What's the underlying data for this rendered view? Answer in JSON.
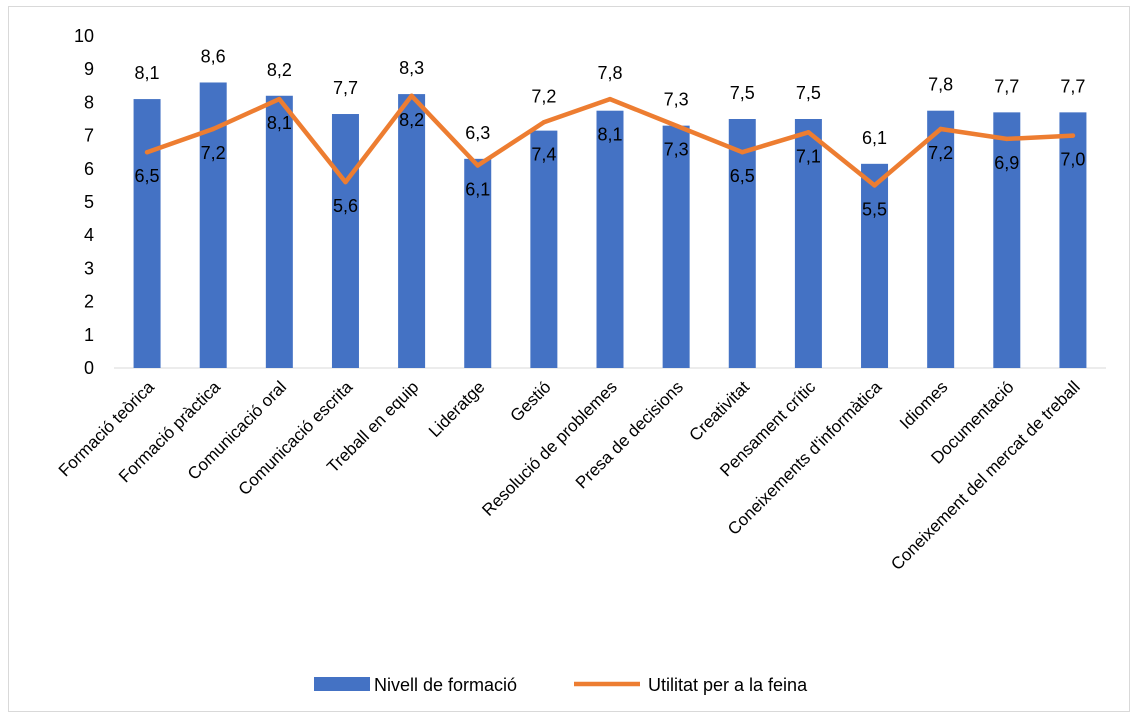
{
  "chart_data": {
    "type": "bar",
    "title": "",
    "xlabel": "",
    "ylabel": "",
    "ylim": [
      0,
      10
    ],
    "yticks": [
      "0",
      "1",
      "2",
      "3",
      "4",
      "5",
      "6",
      "7",
      "8",
      "9",
      "10"
    ],
    "grid": false,
    "legend_position": "bottom",
    "categories": [
      "Formació teòrica",
      "Formació pràctica",
      "Comunicació oral",
      "Comunicació escrita",
      "Treball en equip",
      "Lideratge",
      "Gestió",
      "Resolució de problemes",
      "Presa de decisions",
      "Creativitat",
      "Pensament crític",
      "Coneixements d'informàtica",
      "Idiomes",
      "Documentació",
      "Coneixement del mercat de treball"
    ],
    "series": [
      {
        "name": "Nivell de formació",
        "type": "bar",
        "color": "#4472c4",
        "values": [
          8.1,
          8.6,
          8.2,
          7.65,
          8.25,
          6.3,
          7.15,
          7.75,
          7.3,
          7.5,
          7.5,
          6.15,
          7.75,
          7.7,
          7.7
        ],
        "labels": [
          "8,1",
          "8,6",
          "8,2",
          "7,7",
          "8,3",
          "6,3",
          "7,2",
          "7,8",
          "7,3",
          "7,5",
          "7,5",
          "6,1",
          "7,8",
          "7,7",
          "7,7"
        ]
      },
      {
        "name": "Utilitat per a la feina",
        "type": "line",
        "color": "#ed7d31",
        "values": [
          6.5,
          7.2,
          8.1,
          5.6,
          8.2,
          6.1,
          7.4,
          8.1,
          7.3,
          6.5,
          7.1,
          5.5,
          7.2,
          6.9,
          7.0
        ],
        "labels": [
          "6,5",
          "7,2",
          "8,1",
          "5,6",
          "8,2",
          "6,1",
          "7,4",
          "8,1",
          "7,3",
          "6,5",
          "7,1",
          "5,5",
          "7,2",
          "6,9",
          "7,0"
        ]
      }
    ]
  }
}
